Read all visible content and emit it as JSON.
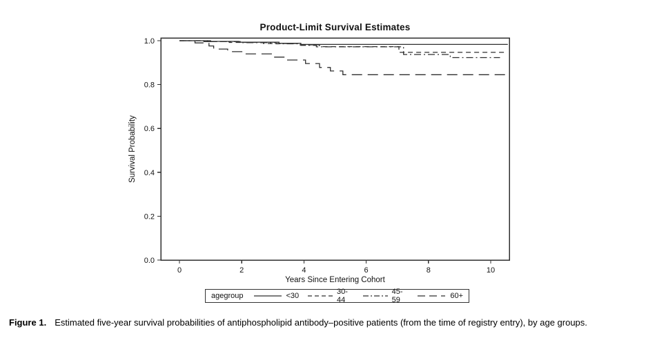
{
  "chart_data": {
    "type": "line",
    "subtype": "kaplan-meier-step",
    "title": "Product-Limit Survival Estimates",
    "xlabel": "Years Since Entering Cohort",
    "ylabel": "Survival Probability",
    "xlim": [
      -0.6,
      10.6
    ],
    "ylim": [
      0.0,
      1.0
    ],
    "xticks": [
      0,
      2,
      4,
      6,
      8,
      10
    ],
    "xtick_labels": [
      "0",
      "2",
      "4",
      "6",
      "8",
      "10"
    ],
    "yticks": [
      0.0,
      0.2,
      0.4,
      0.6,
      0.8,
      1.0
    ],
    "ytick_labels": [
      "0.0",
      "0.2",
      "0.4",
      "0.6",
      "0.8",
      "1.0"
    ],
    "grid": false,
    "legend_title": "agegroup",
    "legend_position": "bottom",
    "line_color": "#2e2e2e",
    "series": [
      {
        "name": "<30",
        "line_style": "solid",
        "points": [
          [
            0,
            1.0
          ],
          [
            1.0,
            0.997
          ],
          [
            1.9,
            0.993
          ],
          [
            3.2,
            0.988
          ],
          [
            3.9,
            0.983
          ],
          [
            10.55,
            0.983
          ]
        ]
      },
      {
        "name": "30-44",
        "line_style": "dash",
        "points": [
          [
            0,
            1.0
          ],
          [
            0.7,
            0.996
          ],
          [
            1.6,
            0.992
          ],
          [
            2.7,
            0.987
          ],
          [
            3.8,
            0.981
          ],
          [
            4.5,
            0.973
          ],
          [
            7.05,
            0.947
          ],
          [
            10.5,
            0.947
          ]
        ]
      },
      {
        "name": "45-59",
        "line_style": "dash-dot",
        "points": [
          [
            0,
            1.0
          ],
          [
            0.9,
            0.996
          ],
          [
            2.0,
            0.991
          ],
          [
            3.1,
            0.986
          ],
          [
            3.9,
            0.979
          ],
          [
            4.4,
            0.972
          ],
          [
            7.2,
            0.937
          ],
          [
            8.7,
            0.923
          ],
          [
            10.3,
            0.923
          ]
        ]
      },
      {
        "name": "60+",
        "line_style": "long-dash",
        "points": [
          [
            0,
            1.0
          ],
          [
            0.5,
            0.99
          ],
          [
            0.95,
            0.976
          ],
          [
            1.1,
            0.962
          ],
          [
            1.55,
            0.95
          ],
          [
            2.05,
            0.94
          ],
          [
            3.0,
            0.925
          ],
          [
            3.4,
            0.912
          ],
          [
            4.05,
            0.896
          ],
          [
            4.5,
            0.878
          ],
          [
            4.85,
            0.862
          ],
          [
            5.25,
            0.845
          ],
          [
            10.5,
            0.845
          ]
        ]
      }
    ]
  },
  "caption": {
    "label": "Figure 1.",
    "text": "Estimated five-year survival probabilities of antiphospholipid antibody–positive patients (from the time of registry entry), by age groups."
  }
}
